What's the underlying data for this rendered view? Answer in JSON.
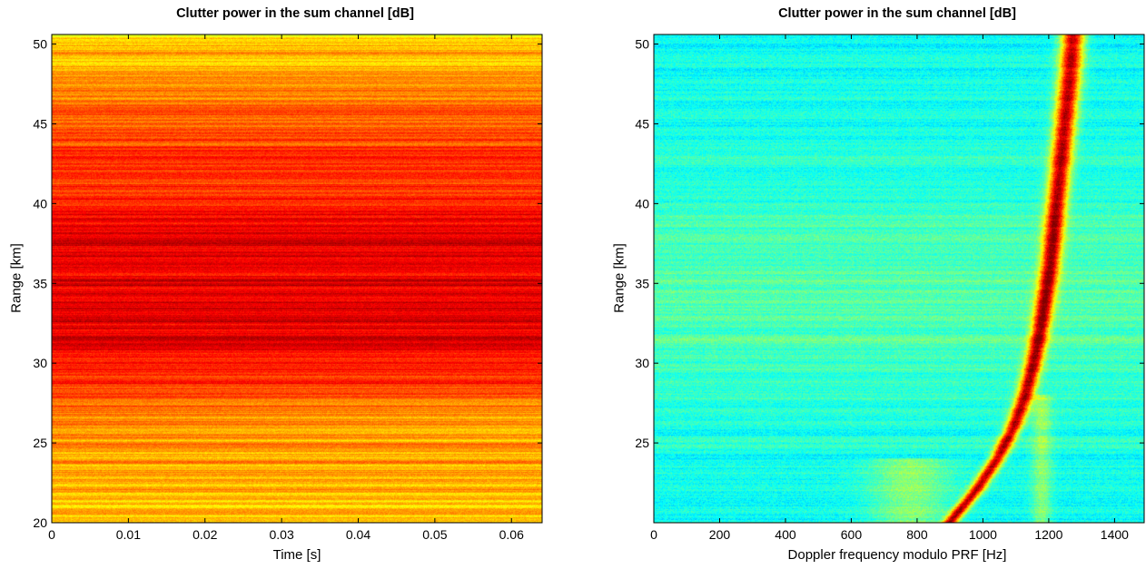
{
  "chart_data": [
    {
      "type": "heatmap",
      "title": "Clutter power in the sum channel [dB]",
      "xlabel": "Time [s]",
      "ylabel": "Range [km]",
      "xlim": [
        0,
        0.064
      ],
      "ylim": [
        20,
        50.6
      ],
      "xticks": [
        0,
        0.01,
        0.02,
        0.03,
        0.04,
        0.05,
        0.06
      ],
      "xtick_labels": [
        "0",
        "0.01",
        "0.02",
        "0.03",
        "0.04",
        "0.05",
        "0.06"
      ],
      "yticks": [
        20,
        25,
        30,
        35,
        40,
        45,
        50
      ],
      "ytick_labels": [
        "20",
        "25",
        "30",
        "35",
        "40",
        "45",
        "50"
      ],
      "colormap": "jet",
      "description_of_pattern": {
        "profile_by_range_km": [
          {
            "range": 20,
            "level": 0.66
          },
          {
            "range": 22,
            "level": 0.7
          },
          {
            "range": 25,
            "level": 0.72
          },
          {
            "range": 27,
            "level": 0.76
          },
          {
            "range": 28.5,
            "level": 0.82
          },
          {
            "range": 31,
            "level": 0.88
          },
          {
            "range": 34,
            "level": 0.91
          },
          {
            "range": 37,
            "level": 0.89
          },
          {
            "range": 40,
            "level": 0.87
          },
          {
            "range": 43,
            "level": 0.82
          },
          {
            "range": 46,
            "level": 0.76
          },
          {
            "range": 48.5,
            "level": 0.7
          },
          {
            "range": 50.6,
            "level": 0.66
          }
        ]
      }
    },
    {
      "type": "heatmap",
      "title": "Clutter power in the sum channel [dB]",
      "xlabel": "Doppler frequency modulo PRF [Hz]",
      "ylabel": "Range [km]",
      "xlim": [
        0,
        1490
      ],
      "ylim": [
        20,
        50.6
      ],
      "xticks": [
        0,
        200,
        400,
        600,
        800,
        1000,
        1200,
        1400
      ],
      "xtick_labels": [
        "0",
        "200",
        "400",
        "600",
        "800",
        "1000",
        "1200",
        "1400"
      ],
      "yticks": [
        25,
        30,
        35,
        40,
        45,
        50
      ],
      "ytick_labels": [
        "25",
        "30",
        "35",
        "40",
        "45",
        "50"
      ],
      "colormap": "jet",
      "ridge": {
        "range_km": [
          20,
          22,
          24,
          26,
          28,
          30,
          32,
          34,
          36,
          38,
          40,
          42,
          44,
          46,
          48,
          50.6
        ],
        "doppler_hz": [
          900,
          980,
          1045,
          1095,
          1130,
          1155,
          1175,
          1190,
          1205,
          1215,
          1225,
          1235,
          1245,
          1255,
          1265,
          1275
        ]
      }
    }
  ]
}
